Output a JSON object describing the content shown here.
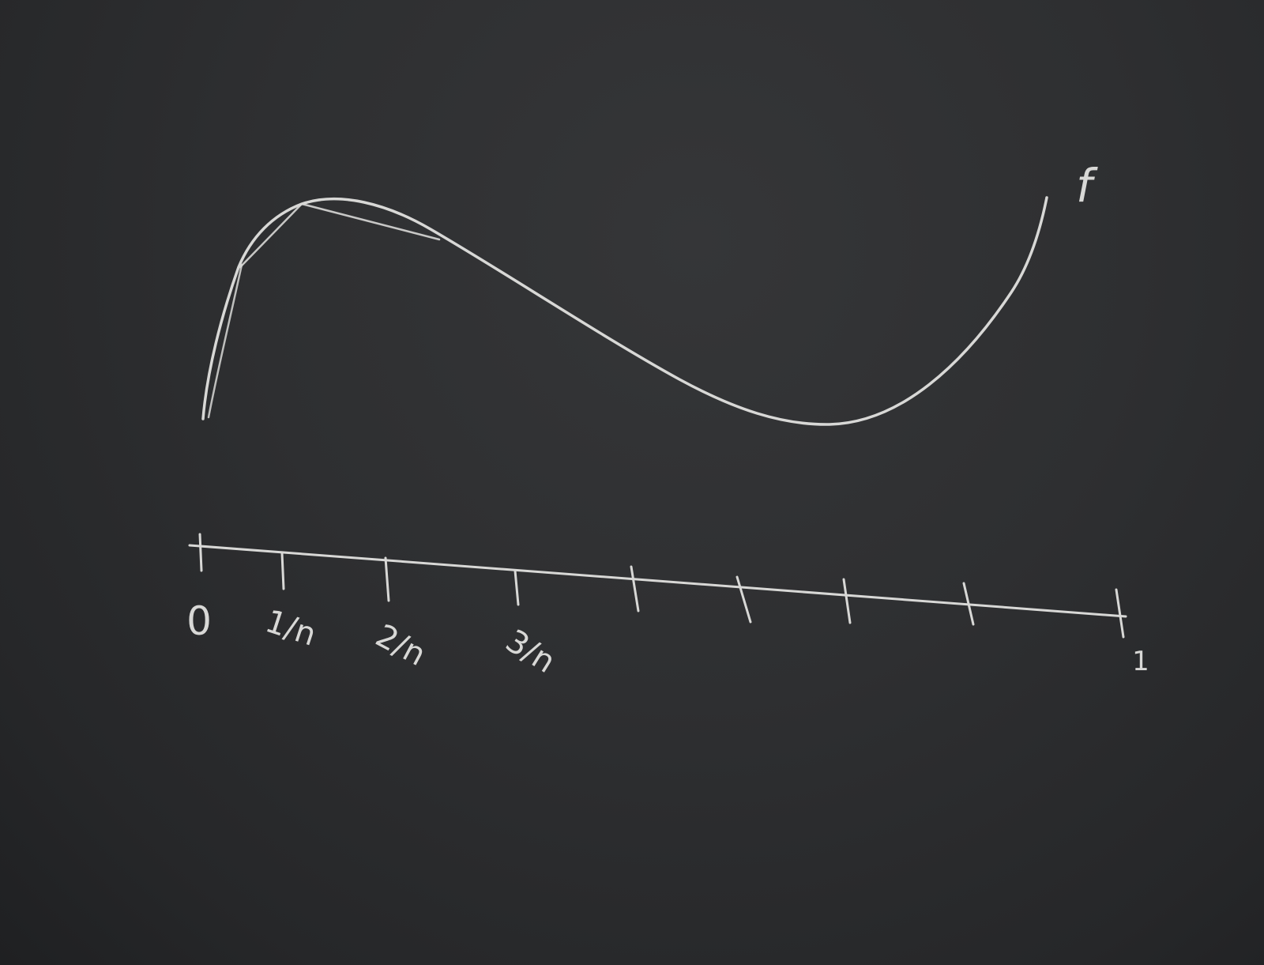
{
  "board": {
    "chalk_color": "#d8d8d6",
    "background_color": "#2b2c2e"
  },
  "function_label": "f",
  "axis": {
    "tick_labels": [
      "0",
      "1/n",
      "2/n",
      "3/n",
      "1"
    ]
  }
}
